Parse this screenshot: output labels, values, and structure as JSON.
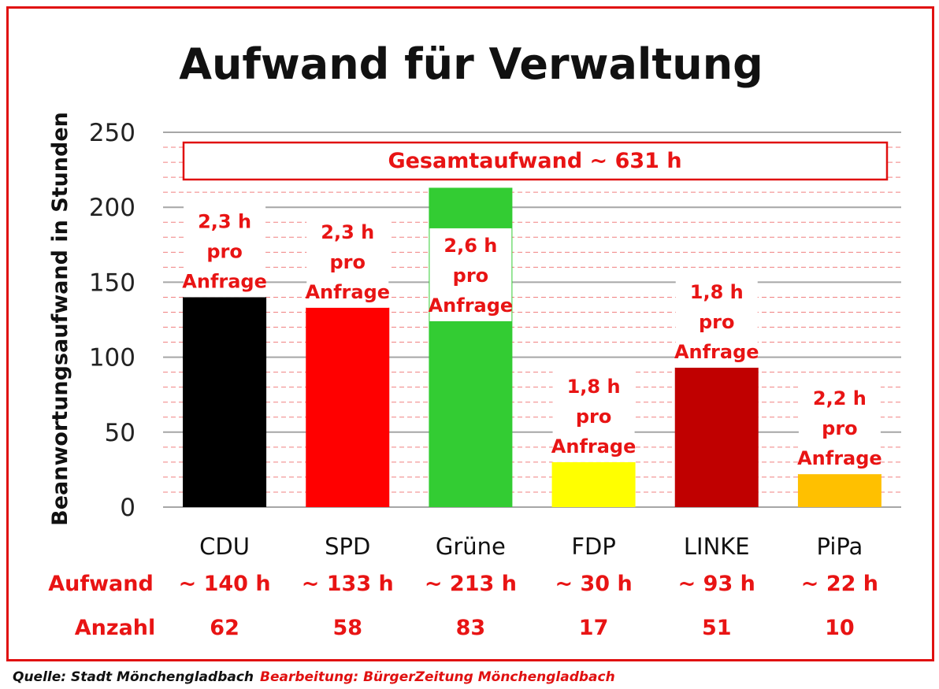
{
  "colors": {
    "accent_red": "#e81414",
    "frame_red": "#e01010",
    "grid_major": "#a6a6a6",
    "grid_minor": "#f08080",
    "text_dark": "#111111"
  },
  "footer": {
    "source": "Quelle: Stadt Mönchengladbach",
    "editing": "Bearbeitung: BürgerZeitung Mönchengladbach"
  },
  "rows": {
    "aufwand_label": "Aufwand",
    "anzahl_label": "Anzahl"
  },
  "chart_data": {
    "type": "bar",
    "title": "Aufwand für Verwaltung",
    "ylabel": "Beanwortungsaufwand in Stunden",
    "xlabel": "",
    "ylim": [
      0,
      250
    ],
    "yticks": [
      0,
      50,
      100,
      150,
      200,
      250
    ],
    "grid": true,
    "total_label": "Gesamtaufwand ~ 631 h",
    "categories": [
      "CDU",
      "SPD",
      "Grüne",
      "FDP",
      "LINKE",
      "PiPa"
    ],
    "values": [
      140,
      133,
      213,
      30,
      93,
      22
    ],
    "bar_colors": [
      "#000000",
      "#ff0000",
      "#33cc33",
      "#ffff00",
      "#c00000",
      "#ffc000"
    ],
    "per_request": [
      "2,3 h",
      "2,3 h",
      "2,6 h",
      "1,8 h",
      "1,8 h",
      "2,2 h"
    ],
    "per_request_suffix": [
      "pro",
      "Anfrage"
    ],
    "aufwand_labels": [
      "~ 140 h",
      "~ 133 h",
      "~ 213 h",
      "~ 30 h",
      "~ 93 h",
      "~ 22 h"
    ],
    "anzahl": [
      62,
      58,
      83,
      17,
      51,
      10
    ]
  }
}
